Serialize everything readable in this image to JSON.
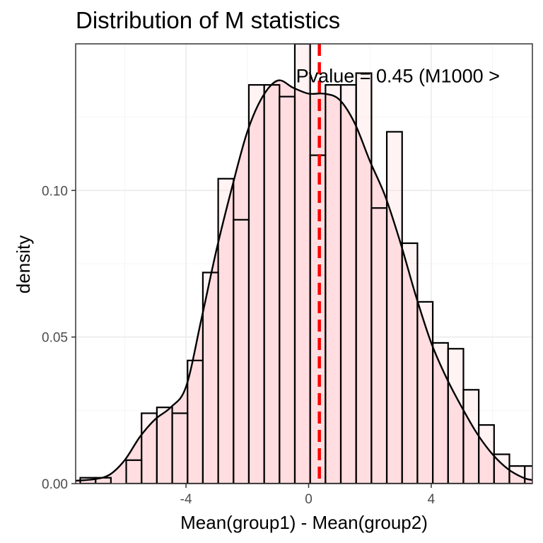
{
  "chart_data": {
    "type": "histogram",
    "title": "Distribution of M statistics",
    "xlabel": "Mean(group1) - Mean(group2)",
    "ylabel": "density",
    "xlim": [
      -7.6,
      7.3
    ],
    "ylim": [
      0,
      0.15
    ],
    "x_ticks": [
      -4,
      0,
      4
    ],
    "x_tick_labels": [
      "-4",
      "0",
      "4"
    ],
    "y_ticks": [
      0.0,
      0.05,
      0.1
    ],
    "y_tick_labels": [
      "0.00",
      "0.05",
      "0.10"
    ],
    "grid": true,
    "bin_width": 0.5,
    "bins": [
      {
        "x": -7.2,
        "density": 0.002
      },
      {
        "x": -6.7,
        "density": 0.002
      },
      {
        "x": -6.2,
        "density": 0.0
      },
      {
        "x": -5.7,
        "density": 0.008
      },
      {
        "x": -5.2,
        "density": 0.024
      },
      {
        "x": -4.7,
        "density": 0.026
      },
      {
        "x": -4.2,
        "density": 0.024
      },
      {
        "x": -3.7,
        "density": 0.042
      },
      {
        "x": -3.2,
        "density": 0.072
      },
      {
        "x": -2.7,
        "density": 0.104
      },
      {
        "x": -2.2,
        "density": 0.09
      },
      {
        "x": -1.7,
        "density": 0.136
      },
      {
        "x": -1.2,
        "density": 0.136
      },
      {
        "x": -0.7,
        "density": 0.132
      },
      {
        "x": -0.2,
        "density": 0.15
      },
      {
        "x": 0.3,
        "density": 0.112
      },
      {
        "x": 0.8,
        "density": 0.136
      },
      {
        "x": 1.3,
        "density": 0.136
      },
      {
        "x": 1.8,
        "density": 0.14
      },
      {
        "x": 2.3,
        "density": 0.094
      },
      {
        "x": 2.8,
        "density": 0.12
      },
      {
        "x": 3.3,
        "density": 0.082
      },
      {
        "x": 3.8,
        "density": 0.062
      },
      {
        "x": 4.3,
        "density": 0.048
      },
      {
        "x": 4.8,
        "density": 0.046
      },
      {
        "x": 5.3,
        "density": 0.032
      },
      {
        "x": 5.8,
        "density": 0.02
      },
      {
        "x": 6.3,
        "density": 0.01
      },
      {
        "x": 6.8,
        "density": 0.006
      },
      {
        "x": 7.3,
        "density": 0.006
      }
    ],
    "density_curve": [
      [
        -7.6,
        0.001
      ],
      [
        -7.0,
        0.0015
      ],
      [
        -6.5,
        0.003
      ],
      [
        -6.0,
        0.008
      ],
      [
        -5.5,
        0.016
      ],
      [
        -5.0,
        0.022
      ],
      [
        -4.5,
        0.026
      ],
      [
        -4.0,
        0.033
      ],
      [
        -3.5,
        0.056
      ],
      [
        -3.0,
        0.08
      ],
      [
        -2.5,
        0.101
      ],
      [
        -2.0,
        0.12
      ],
      [
        -1.5,
        0.132
      ],
      [
        -1.0,
        0.1375
      ],
      [
        -0.5,
        0.135
      ],
      [
        0.0,
        0.133
      ],
      [
        0.5,
        0.133
      ],
      [
        1.0,
        0.131
      ],
      [
        1.5,
        0.123
      ],
      [
        2.0,
        0.11
      ],
      [
        2.5,
        0.098
      ],
      [
        3.0,
        0.082
      ],
      [
        3.5,
        0.064
      ],
      [
        4.0,
        0.048
      ],
      [
        4.5,
        0.036
      ],
      [
        5.0,
        0.026
      ],
      [
        5.5,
        0.017
      ],
      [
        6.0,
        0.01
      ],
      [
        6.5,
        0.005
      ],
      [
        7.0,
        0.002
      ],
      [
        7.3,
        0.0012
      ]
    ],
    "vline": {
      "x": 0.35,
      "color": "#ff0000",
      "style": "dashed"
    },
    "annotation": {
      "text": "Pvalue = 0.45 (M1000 >",
      "x": 0.35,
      "y": 0.139
    },
    "colors": {
      "fill": "#ffdde0",
      "bar_outline": "#000000",
      "curve": "#000000",
      "vline": "#ff0000",
      "grid_major": "#ebebeb",
      "grid_minor": "#f4f4f4",
      "panel_border": "#333333"
    }
  }
}
